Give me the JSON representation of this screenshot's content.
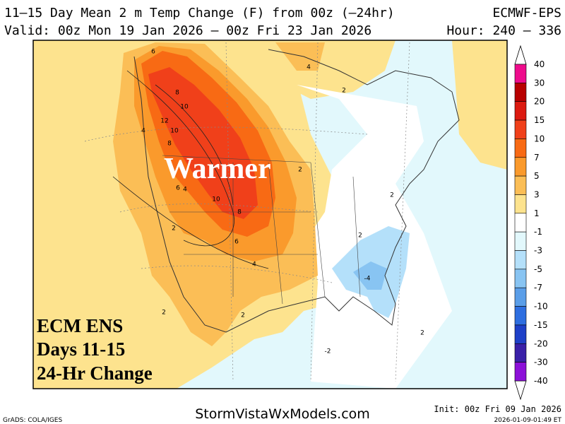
{
  "header": {
    "title": "11–15 Day Mean 2 m Temp Change (F) from 00z (–24hr)",
    "model": "ECMWF-EPS",
    "valid": "Valid: 00z Mon 19 Jan 2026 – 00z Fri 23 Jan 2026",
    "hour": "Hour: 240 – 336"
  },
  "colorbar": {
    "levels": [
      40,
      30,
      20,
      15,
      10,
      7,
      5,
      3,
      1,
      -1,
      -3,
      -5,
      -7,
      -10,
      -15,
      -20,
      -30,
      -40
    ],
    "colors": [
      "#ee0c8c",
      "#b80000",
      "#dc1a10",
      "#f0401a",
      "#f86a14",
      "#fa9a2c",
      "#fbbe56",
      "#fde38e",
      "#ffffff",
      "#e2f8fc",
      "#b4e0fa",
      "#88c4f2",
      "#5a9ee8",
      "#2e6ee0",
      "#1e40c8",
      "#3a20a8",
      "#8c10d8"
    ]
  },
  "map": {
    "annotation": "Warmer",
    "contour_labels": [
      6,
      4,
      2,
      8,
      10,
      12,
      10,
      4,
      8,
      2,
      6,
      4,
      2,
      10,
      8,
      2,
      2,
      6,
      4,
      -4,
      2,
      2,
      2,
      -2
    ]
  },
  "legend_box": [
    "ECM ENS",
    "Days 11-15",
    "24-Hr Change"
  ],
  "footer": {
    "credit": "GrADS: COLA/IGES",
    "site": "StormVistaWxModels.com",
    "init": "Init: 00z Fri 09 Jan 2026",
    "stamp": "2026-01-09-01:49 ET"
  }
}
